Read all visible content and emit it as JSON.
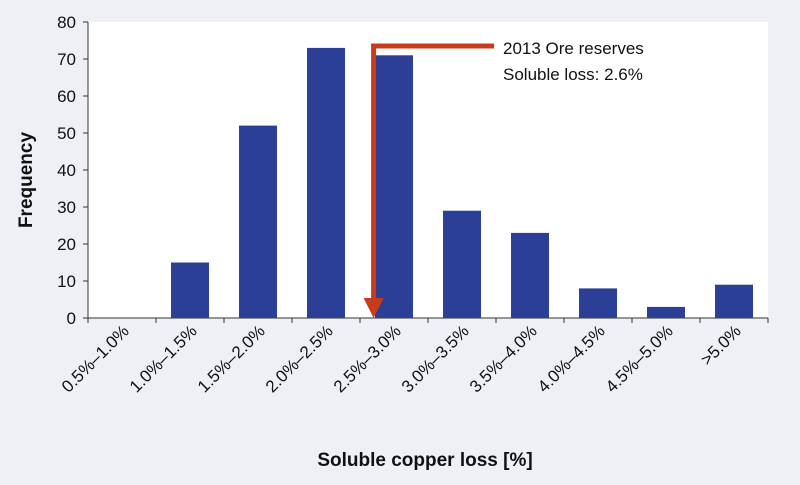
{
  "chart_data": {
    "type": "bar",
    "title": "",
    "xlabel": "Soluble copper loss [%]",
    "ylabel": "Frequency",
    "ylim": [
      0,
      80
    ],
    "yticks": [
      0,
      10,
      20,
      30,
      40,
      50,
      60,
      70,
      80
    ],
    "grid": false,
    "categories": [
      "0.5%–1.0%",
      "1.0%–1.5%",
      "1.5%–2.0%",
      "2.0%–2.5%",
      "2.5%–3.0%",
      "3.0%–3.5%",
      "3.5%–4.0%",
      "4.0%–4.5%",
      "4.5%–5.0%",
      ">5.0%"
    ],
    "values": [
      0,
      15,
      52,
      73,
      71,
      29,
      23,
      8,
      3,
      9
    ],
    "annotation": {
      "lines": [
        "2013 Ore reserves",
        "Soluble loss: 2.6%"
      ],
      "x_value": 2.6
    },
    "colors": {
      "bar": "#2b3f96",
      "arrow": "#c83c1e",
      "plot_background": "#ffffff",
      "page_background": "#eef0f5"
    }
  }
}
